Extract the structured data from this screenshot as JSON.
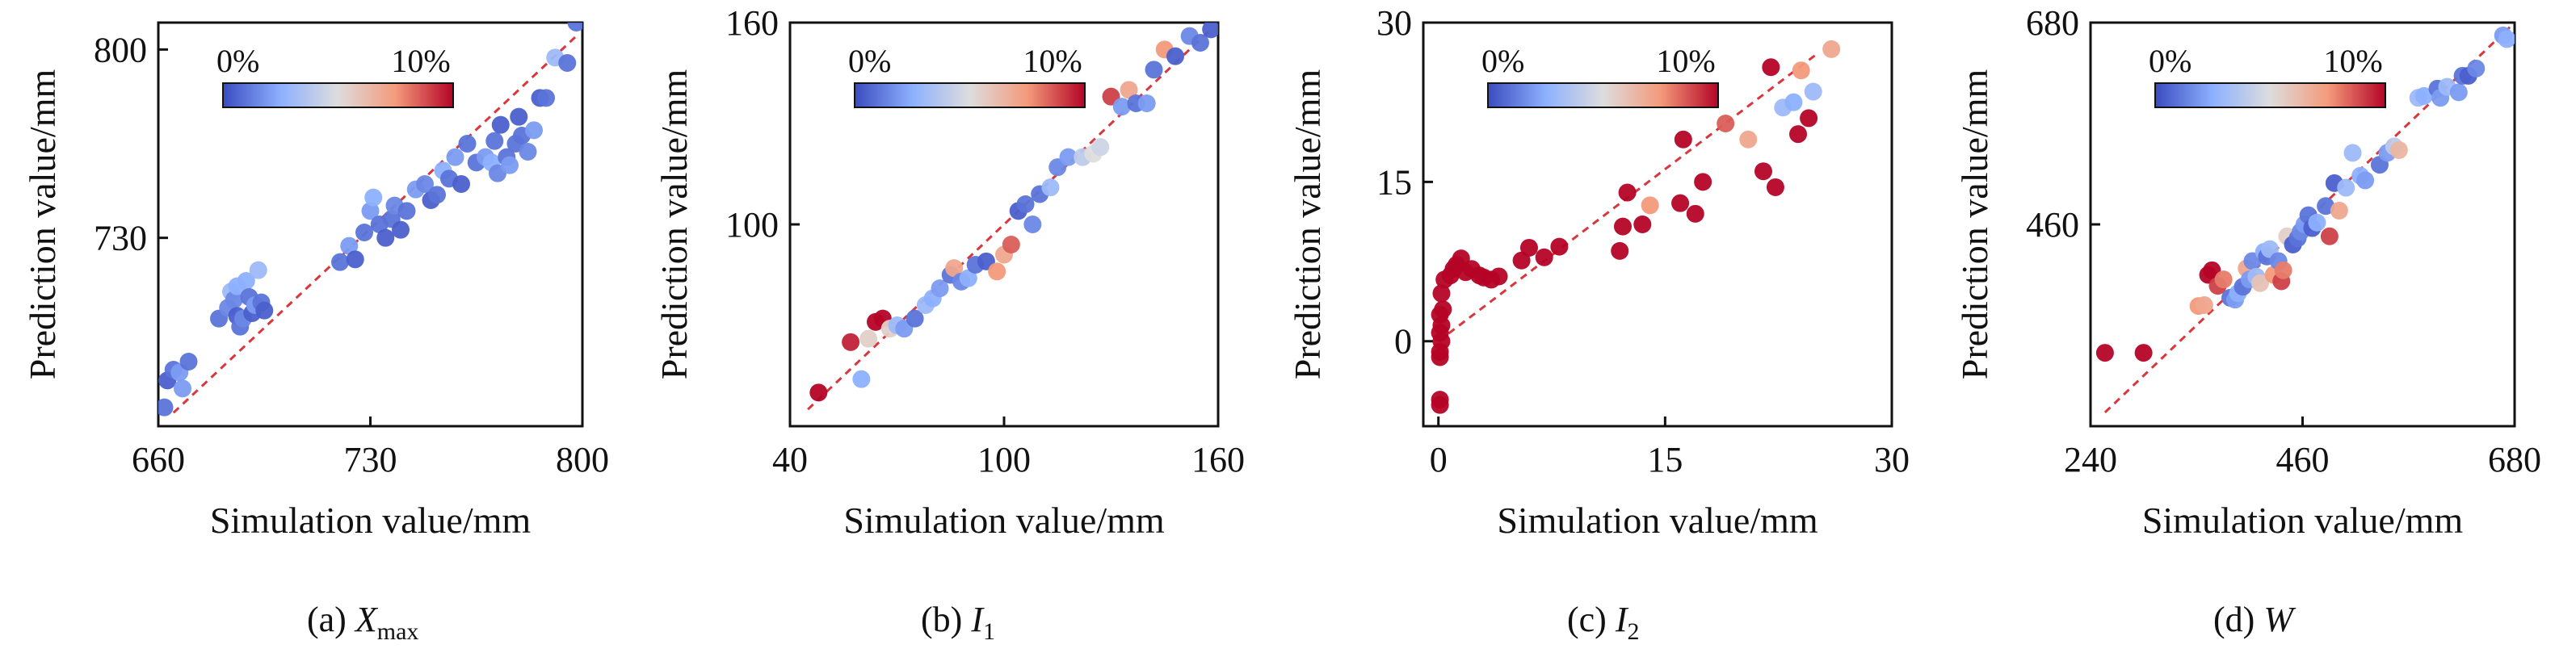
{
  "colorbar": {
    "min_label": "0%",
    "max_label": "10%",
    "colors": [
      "#3a4cc0",
      "#8db0fe",
      "#dddddd",
      "#f49a7b",
      "#b40426"
    ]
  },
  "common": {
    "xlabel": "Simulation value/mm",
    "ylabel": "Prediction value/mm"
  },
  "chart_data": [
    {
      "type": "scatter",
      "caption": {
        "prefix": "(a) ",
        "var": "X",
        "sub": "max"
      },
      "xlim": [
        660,
        800
      ],
      "ylim": [
        660,
        810
      ],
      "xticks": [
        660,
        730,
        800
      ],
      "yticks": [
        730,
        800
      ],
      "xtick_labels": [
        "660",
        "730",
        "800"
      ],
      "ytick_labels": [
        "730",
        "800"
      ],
      "fit_line": [
        [
          665,
          665
        ],
        [
          798,
          805
        ]
      ],
      "points": [
        [
          662,
          667,
          0.1
        ],
        [
          663,
          677,
          0.05
        ],
        [
          665,
          681,
          0.1
        ],
        [
          667,
          680,
          0.2
        ],
        [
          668,
          674,
          0.2
        ],
        [
          670,
          684,
          0.1
        ],
        [
          680,
          700,
          0.1
        ],
        [
          683,
          704,
          0.15
        ],
        [
          684,
          710,
          0.3
        ],
        [
          685,
          707,
          0.15
        ],
        [
          686,
          712,
          0.25
        ],
        [
          686,
          701,
          0.05
        ],
        [
          687,
          697,
          0.1
        ],
        [
          688,
          700,
          0.15
        ],
        [
          689,
          714,
          0.25
        ],
        [
          690,
          708,
          0.1
        ],
        [
          691,
          702,
          0.05
        ],
        [
          692,
          705,
          0.2
        ],
        [
          693,
          718,
          0.3
        ],
        [
          694,
          706,
          0.1
        ],
        [
          695,
          703,
          0.05
        ],
        [
          720,
          721,
          0.1
        ],
        [
          723,
          727,
          0.2
        ],
        [
          725,
          722,
          0.05
        ],
        [
          728,
          732,
          0.1
        ],
        [
          730,
          740,
          0.2
        ],
        [
          731,
          745,
          0.25
        ],
        [
          733,
          735,
          0.1
        ],
        [
          735,
          730,
          0.05
        ],
        [
          737,
          737,
          0.1
        ],
        [
          738,
          742,
          0.15
        ],
        [
          740,
          733,
          0.05
        ],
        [
          742,
          740,
          0.1
        ],
        [
          745,
          748,
          0.2
        ],
        [
          748,
          750,
          0.15
        ],
        [
          750,
          744,
          0.05
        ],
        [
          752,
          746,
          0.1
        ],
        [
          754,
          755,
          0.25
        ],
        [
          756,
          752,
          0.1
        ],
        [
          758,
          760,
          0.2
        ],
        [
          760,
          750,
          0.05
        ],
        [
          762,
          765,
          0.1
        ],
        [
          765,
          758,
          0.1
        ],
        [
          768,
          760,
          0.2
        ],
        [
          770,
          758,
          0.25
        ],
        [
          771,
          766,
          0.1
        ],
        [
          772,
          754,
          0.15
        ],
        [
          773,
          772,
          0.05
        ],
        [
          775,
          760,
          0.1
        ],
        [
          776,
          757,
          0.2
        ],
        [
          778,
          765,
          0.1
        ],
        [
          779,
          775,
          0.05
        ],
        [
          780,
          768,
          0.1
        ],
        [
          782,
          762,
          0.15
        ],
        [
          784,
          770,
          0.2
        ],
        [
          786,
          782,
          0.05
        ],
        [
          788,
          782,
          0.1
        ],
        [
          791,
          797,
          0.3
        ],
        [
          795,
          795,
          0.1
        ],
        [
          798,
          810,
          0.1
        ]
      ]
    },
    {
      "type": "scatter",
      "caption": {
        "prefix": "(b) ",
        "var": "I",
        "sub": "1"
      },
      "xlim": [
        40,
        160
      ],
      "ylim": [
        40,
        160
      ],
      "xticks": [
        40,
        100,
        160
      ],
      "yticks": [
        100,
        160
      ],
      "xtick_labels": [
        "40",
        "100",
        "160"
      ],
      "ytick_labels": [
        "100",
        "160"
      ],
      "fit_line": [
        [
          45,
          45
        ],
        [
          158,
          158
        ]
      ],
      "points": [
        [
          48,
          50,
          1.0
        ],
        [
          57,
          65,
          0.95
        ],
        [
          60,
          54,
          0.25
        ],
        [
          62,
          66,
          0.55
        ],
        [
          64,
          71,
          1.0
        ],
        [
          66,
          72,
          1.0
        ],
        [
          68,
          69,
          0.55
        ],
        [
          70,
          70,
          0.3
        ],
        [
          72,
          69,
          0.2
        ],
        [
          75,
          72,
          0.1
        ],
        [
          78,
          76,
          0.3
        ],
        [
          80,
          78,
          0.25
        ],
        [
          82,
          81,
          0.2
        ],
        [
          85,
          85,
          0.1
        ],
        [
          86,
          87,
          0.7
        ],
        [
          88,
          83,
          0.15
        ],
        [
          90,
          84,
          0.25
        ],
        [
          92,
          88,
          0.1
        ],
        [
          95,
          89,
          0.05
        ],
        [
          98,
          86,
          0.75
        ],
        [
          100,
          91,
          0.7
        ],
        [
          102,
          94,
          0.85
        ],
        [
          104,
          104,
          0.05
        ],
        [
          106,
          106,
          0.1
        ],
        [
          108,
          100,
          0.15
        ],
        [
          110,
          109,
          0.1
        ],
        [
          113,
          111,
          0.3
        ],
        [
          115,
          117,
          0.15
        ],
        [
          118,
          120,
          0.2
        ],
        [
          122,
          120,
          0.4
        ],
        [
          125,
          121,
          0.5
        ],
        [
          127,
          123,
          0.45
        ],
        [
          130,
          138,
          0.9
        ],
        [
          133,
          135,
          0.2
        ],
        [
          135,
          140,
          0.7
        ],
        [
          137,
          136,
          0.1
        ],
        [
          140,
          136,
          0.2
        ],
        [
          142,
          146,
          0.1
        ],
        [
          145,
          152,
          0.75
        ],
        [
          148,
          150,
          0.05
        ],
        [
          152,
          156,
          0.15
        ],
        [
          155,
          154,
          0.1
        ],
        [
          158,
          158,
          0.05
        ]
      ]
    },
    {
      "type": "scatter",
      "caption": {
        "prefix": "(c) ",
        "var": "I",
        "sub": "2"
      },
      "xlim": [
        -1,
        30
      ],
      "ylim": [
        -8,
        30
      ],
      "xticks": [
        0,
        15,
        30
      ],
      "yticks": [
        0,
        15,
        30
      ],
      "xtick_labels": [
        "0",
        "15",
        "30"
      ],
      "ytick_labels": [
        "0",
        "15",
        "30"
      ],
      "fit_line": [
        [
          0,
          0
        ],
        [
          25,
          27
        ]
      ],
      "points": [
        [
          0.1,
          -5.5,
          1.0
        ],
        [
          0.1,
          -6.0,
          1.0
        ],
        [
          0.1,
          -1.5,
          1.0
        ],
        [
          0.1,
          -1.0,
          1.0
        ],
        [
          0.2,
          0.0,
          1.0
        ],
        [
          0.1,
          0.8,
          1.0
        ],
        [
          0.2,
          1.5,
          1.0
        ],
        [
          0.1,
          2.5,
          1.0
        ],
        [
          0.3,
          3.0,
          1.0
        ],
        [
          0.2,
          4.5,
          1.0
        ],
        [
          0.4,
          5.8,
          1.0
        ],
        [
          0.8,
          6.2,
          1.0
        ],
        [
          1.0,
          6.8,
          1.0
        ],
        [
          1.2,
          7.2,
          1.0
        ],
        [
          1.5,
          7.8,
          1.0
        ],
        [
          1.8,
          6.5,
          1.0
        ],
        [
          2.2,
          6.8,
          1.0
        ],
        [
          2.7,
          6.2,
          1.0
        ],
        [
          3.0,
          6.0,
          1.0
        ],
        [
          3.5,
          5.8,
          1.0
        ],
        [
          4.0,
          6.1,
          1.0
        ],
        [
          5.5,
          7.6,
          1.0
        ],
        [
          6.0,
          8.8,
          1.0
        ],
        [
          7.0,
          7.9,
          1.0
        ],
        [
          8.0,
          8.9,
          1.0
        ],
        [
          12.0,
          8.5,
          1.0
        ],
        [
          12.2,
          10.8,
          1.0
        ],
        [
          12.5,
          14.0,
          1.0
        ],
        [
          13.5,
          11.0,
          1.0
        ],
        [
          14.0,
          12.8,
          0.75
        ],
        [
          16.0,
          13.0,
          1.0
        ],
        [
          16.2,
          19.0,
          1.0
        ],
        [
          17.0,
          12.0,
          1.0
        ],
        [
          17.5,
          15.0,
          1.0
        ],
        [
          19.0,
          20.5,
          0.85
        ],
        [
          20.5,
          19.0,
          0.7
        ],
        [
          21.5,
          16.0,
          1.0
        ],
        [
          22.0,
          25.8,
          1.0
        ],
        [
          22.3,
          14.5,
          1.0
        ],
        [
          22.8,
          22.0,
          0.3
        ],
        [
          23.5,
          22.5,
          0.25
        ],
        [
          23.8,
          19.5,
          1.0
        ],
        [
          24.0,
          25.5,
          0.75
        ],
        [
          24.5,
          21.0,
          1.0
        ],
        [
          24.8,
          23.5,
          0.3
        ],
        [
          26.0,
          27.5,
          0.7
        ]
      ]
    },
    {
      "type": "scatter",
      "caption": {
        "prefix": "(d) ",
        "var": "W",
        "sub": ""
      },
      "xlim": [
        240,
        680
      ],
      "ylim": [
        240,
        680
      ],
      "xticks": [
        240,
        460,
        680
      ],
      "yticks": [
        460,
        680
      ],
      "xtick_labels": [
        "240",
        "460",
        "680"
      ],
      "ytick_labels": [
        "460",
        "680"
      ],
      "fit_line": [
        [
          255,
          255
        ],
        [
          675,
          675
        ]
      ],
      "points": [
        [
          255,
          320,
          1.0
        ],
        [
          295,
          320,
          1.0
        ],
        [
          352,
          371,
          0.75
        ],
        [
          358,
          372,
          0.7
        ],
        [
          362,
          405,
          1.0
        ],
        [
          366,
          410,
          1.0
        ],
        [
          372,
          393,
          0.9
        ],
        [
          378,
          400,
          0.8
        ],
        [
          385,
          380,
          0.1
        ],
        [
          390,
          378,
          0.2
        ],
        [
          393,
          385,
          0.25
        ],
        [
          398,
          392,
          0.1
        ],
        [
          402,
          412,
          0.7
        ],
        [
          405,
          400,
          0.2
        ],
        [
          408,
          420,
          0.15
        ],
        [
          412,
          403,
          0.3
        ],
        [
          416,
          396,
          0.6
        ],
        [
          420,
          430,
          0.25
        ],
        [
          423,
          425,
          0.1
        ],
        [
          426,
          433,
          0.3
        ],
        [
          430,
          405,
          0.75
        ],
        [
          435,
          420,
          0.15
        ],
        [
          438,
          398,
          0.9
        ],
        [
          440,
          410,
          0.8
        ],
        [
          444,
          447,
          0.55
        ],
        [
          450,
          438,
          0.05
        ],
        [
          455,
          445,
          0.1
        ],
        [
          458,
          452,
          0.15
        ],
        [
          462,
          460,
          0.2
        ],
        [
          466,
          470,
          0.1
        ],
        [
          470,
          456,
          0.05
        ],
        [
          475,
          462,
          0.25
        ],
        [
          484,
          480,
          0.1
        ],
        [
          488,
          447,
          0.9
        ],
        [
          493,
          505,
          0.05
        ],
        [
          498,
          475,
          0.7
        ],
        [
          505,
          500,
          0.3
        ],
        [
          512,
          538,
          0.3
        ],
        [
          520,
          513,
          0.25
        ],
        [
          525,
          508,
          0.2
        ],
        [
          540,
          525,
          0.1
        ],
        [
          548,
          538,
          0.2
        ],
        [
          555,
          545,
          0.4
        ],
        [
          560,
          541,
          0.65
        ],
        [
          580,
          598,
          0.3
        ],
        [
          586,
          600,
          0.25
        ],
        [
          600,
          608,
          0.1
        ],
        [
          603,
          598,
          0.2
        ],
        [
          610,
          610,
          0.3
        ],
        [
          622,
          604,
          0.2
        ],
        [
          626,
          622,
          0.1
        ],
        [
          632,
          622,
          0.05
        ],
        [
          640,
          630,
          0.15
        ],
        [
          668,
          666,
          0.2
        ],
        [
          672,
          662,
          0.25
        ]
      ]
    }
  ]
}
